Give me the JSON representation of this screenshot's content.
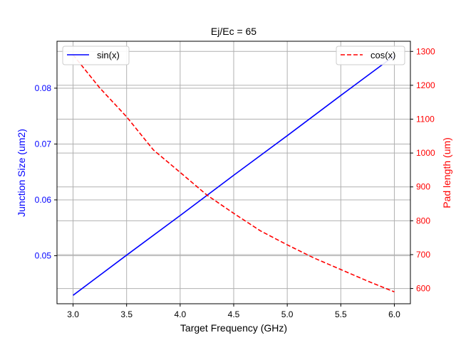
{
  "chart_data": {
    "type": "line",
    "title": "Ej/Ec = 65",
    "xlabel": "Target Frequency (GHz)",
    "ylabel_left": "Junction Size (um2)",
    "ylabel_right": "Pad length (um)",
    "xlim": [
      2.85,
      6.15
    ],
    "ylim_left": [
      0.0414,
      0.0884
    ],
    "ylim_right": [
      555,
      1330
    ],
    "xticks": [
      3.0,
      3.5,
      4.0,
      4.5,
      5.0,
      5.5,
      6.0
    ],
    "xtick_labels": [
      "3.0",
      "3.5",
      "4.0",
      "4.5",
      "5.0",
      "5.5",
      "6.0"
    ],
    "yticks_left": [
      0.05,
      0.06,
      0.07,
      0.08
    ],
    "ytick_labels_left": [
      "0.05",
      "0.06",
      "0.07",
      "0.08"
    ],
    "yticks_right": [
      600,
      700,
      800,
      900,
      1000,
      1100,
      1200,
      1300
    ],
    "ytick_labels_right": [
      "600",
      "700",
      "800",
      "900",
      "1000",
      "1100",
      "1200",
      "1300"
    ],
    "grid": true,
    "colors": {
      "left_axis": "#0000ff",
      "right_axis": "#ff0000",
      "grid": "#b0b0b0",
      "text": "#000000"
    },
    "series": [
      {
        "name": "sin(x)",
        "axis": "left",
        "color": "#0000ff",
        "style": "solid",
        "legend_position": "upper-left",
        "x": [
          3.0,
          3.5,
          4.0,
          4.5,
          5.0,
          5.5,
          6.0
        ],
        "values": [
          0.0429,
          0.0501,
          0.0572,
          0.0644,
          0.0715,
          0.0787,
          0.0858
        ]
      },
      {
        "name": "cos(x)",
        "axis": "right",
        "color": "#ff0000",
        "style": "dashed",
        "legend_position": "upper-right",
        "x": [
          3.0,
          3.25,
          3.5,
          3.75,
          4.0,
          4.25,
          4.5,
          4.75,
          5.0,
          5.25,
          5.5,
          5.75,
          6.0
        ],
        "values": [
          1290,
          1192,
          1107,
          1009,
          943,
          876,
          822,
          770,
          729,
          690,
          656,
          622,
          590
        ]
      }
    ]
  }
}
